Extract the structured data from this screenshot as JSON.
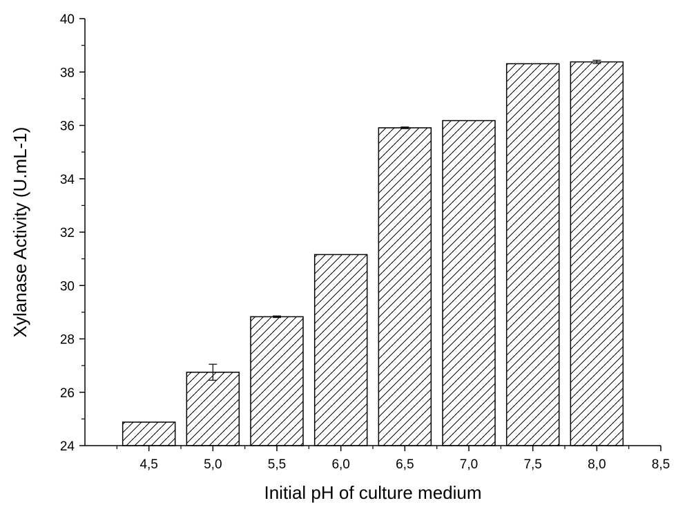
{
  "chart_data": {
    "type": "bar",
    "title": "",
    "xlabel": "Initial pH of culture medium",
    "ylabel": "Xylanase Activity (U.mL-1)",
    "x": [
      4.5,
      5.0,
      5.5,
      6.0,
      6.5,
      7.0,
      7.5,
      8.0
    ],
    "values": [
      24.88,
      26.75,
      28.83,
      31.16,
      35.91,
      36.18,
      38.31,
      38.38
    ],
    "errors": [
      0,
      0.3,
      0.03,
      0,
      0.03,
      0,
      0,
      0.06
    ],
    "xlim": [
      4.0,
      8.5
    ],
    "ylim": [
      24,
      40
    ],
    "x_ticks": [
      "4,5",
      "5,0",
      "5,5",
      "6,0",
      "6,5",
      "7,0",
      "7,5",
      "8,0",
      "8,5"
    ],
    "x_tick_values": [
      4.5,
      5.0,
      5.5,
      6.0,
      6.5,
      7.0,
      7.5,
      8.0,
      8.5
    ],
    "y_ticks": [
      "24",
      "26",
      "28",
      "30",
      "32",
      "34",
      "36",
      "38",
      "40"
    ],
    "y_tick_values": [
      24,
      26,
      28,
      30,
      32,
      34,
      36,
      38,
      40
    ],
    "fill": "diagonal-hatch",
    "bar_color": "#000000",
    "grid": false,
    "legend": "none"
  }
}
